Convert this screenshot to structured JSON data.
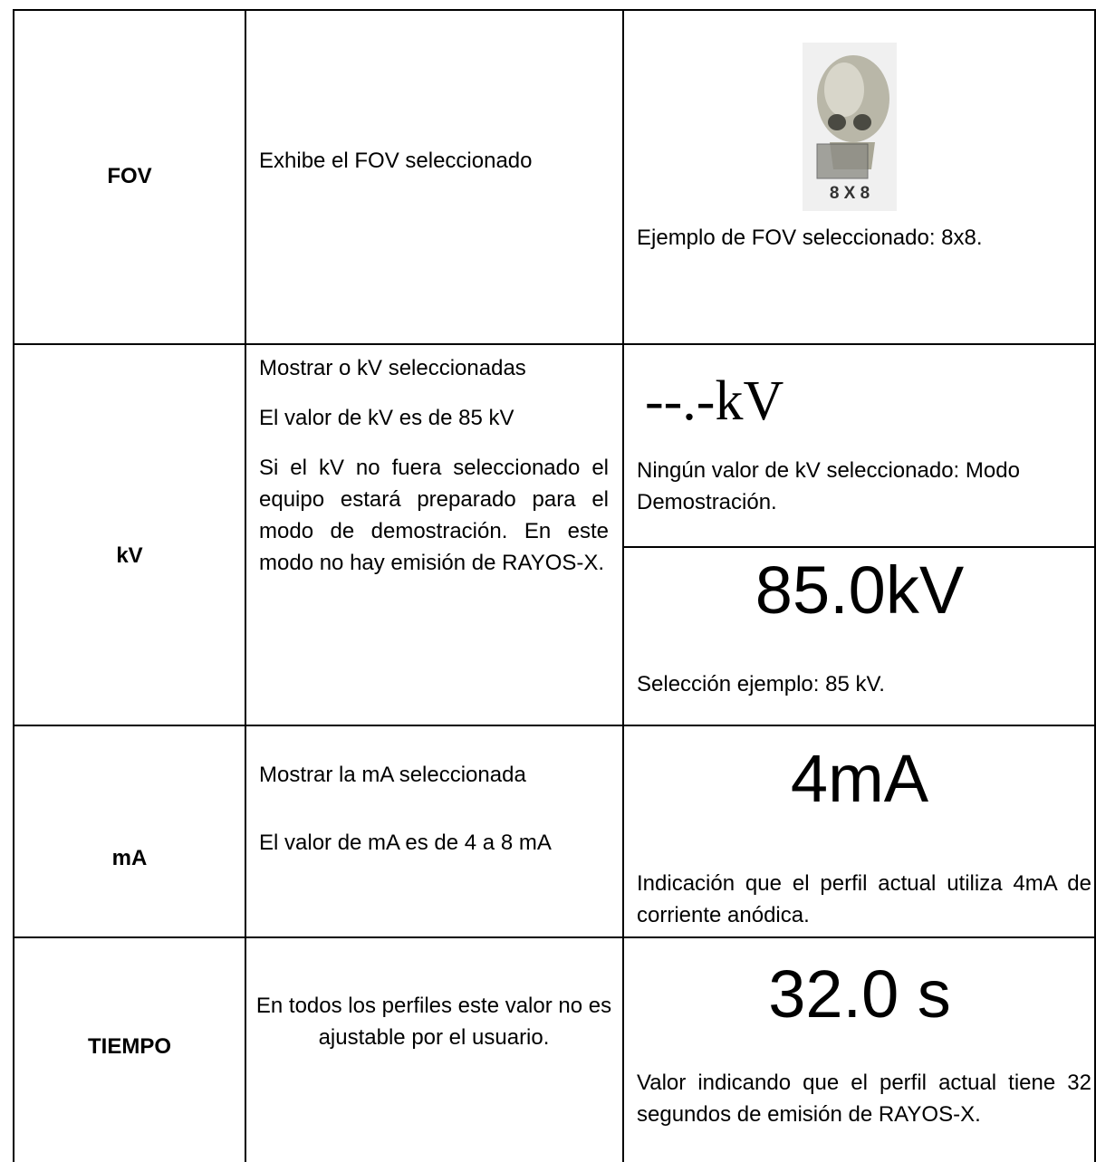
{
  "table": {
    "rows": [
      {
        "label": "FOV",
        "description": [
          "Exhibe el FOV seleccionado"
        ],
        "examples": [
          {
            "image_caption": "8 X 8",
            "text": "Ejemplo de FOV seleccionado: 8x8."
          }
        ]
      },
      {
        "label": "kV",
        "description": [
          "Mostrar o kV seleccionadas",
          "El valor de kV es de 85 kV",
          "Si el kV no fuera seleccionado el equipo estará preparado para el modo de demostración. En este modo no hay emisión de RAYOS-X."
        ],
        "examples": [
          {
            "display": "--.-kV",
            "text": "Ningún valor de kV seleccionado: Modo Demostración."
          },
          {
            "display": "85.0kV",
            "text": "Selección ejemplo: 85 kV."
          }
        ]
      },
      {
        "label": "mA",
        "description": [
          "Mostrar la mA seleccionada",
          "El valor de mA es de 4 a 8 mA"
        ],
        "examples": [
          {
            "display": "4mA",
            "text": "Indicación que el perfil actual utiliza 4mA de corriente anódica."
          }
        ]
      },
      {
        "label": "TIEMPO",
        "description": [
          "En todos los perfiles este valor no es ajustable por el usuario."
        ],
        "examples": [
          {
            "display": "32.0 s",
            "text": "Valor indicando que el perfil actual tiene 32 segundos de emisión de RAYOS-X."
          }
        ]
      }
    ]
  }
}
